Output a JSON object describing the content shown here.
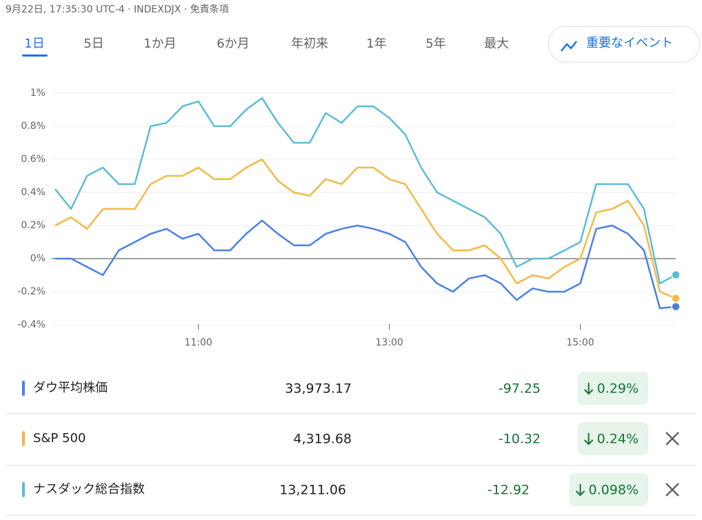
{
  "header": {
    "info": "9月22日, 17:35:30 UTC-4 · INDEXDJX · 免責条項",
    "tabs": [
      "1日",
      "5日",
      "1か月",
      "6か月",
      "年初来",
      "1年",
      "5年",
      "最大"
    ],
    "button": "重要なイベント"
  },
  "chart_data": {
    "type": "line",
    "x": [
      "9:30",
      "9:40",
      "9:50",
      "10:00",
      "10:10",
      "10:20",
      "10:30",
      "10:40",
      "10:50",
      "11:00",
      "11:10",
      "11:20",
      "11:30",
      "11:40",
      "11:50",
      "12:00",
      "12:10",
      "12:20",
      "12:30",
      "12:40",
      "12:50",
      "13:00",
      "13:10",
      "13:20",
      "13:30",
      "13:40",
      "13:50",
      "14:00",
      "14:10",
      "14:20",
      "14:30",
      "14:40",
      "14:50",
      "15:00",
      "15:10",
      "15:20",
      "15:30",
      "15:40",
      "15:50",
      "16:00"
    ],
    "xlim": [
      "9:30",
      "16:00"
    ],
    "xticks": [
      "11:00",
      "13:00",
      "15:00"
    ],
    "ylim": [
      -0.4,
      1
    ],
    "yticks": [
      {
        "value": -0.4,
        "label": "-0.4%"
      },
      {
        "value": -0.2,
        "label": "-0.2%"
      },
      {
        "value": 0,
        "label": "0%"
      },
      {
        "value": 0.2,
        "label": "0.2%"
      },
      {
        "value": 0.4,
        "label": "0.4%"
      },
      {
        "value": 0.6,
        "label": "0.6%"
      },
      {
        "value": 0.8,
        "label": "0.8%"
      },
      {
        "value": 1,
        "label": "1%"
      }
    ],
    "grid": true,
    "series": [
      {
        "name": "ダウ平均株価",
        "color": "#4a80e8",
        "values": [
          0.0,
          0.0,
          -0.05,
          -0.1,
          0.05,
          0.1,
          0.15,
          0.18,
          0.12,
          0.15,
          0.05,
          0.05,
          0.15,
          0.23,
          0.15,
          0.08,
          0.08,
          0.15,
          0.18,
          0.2,
          0.18,
          0.15,
          0.1,
          -0.05,
          -0.15,
          -0.2,
          -0.12,
          -0.1,
          -0.15,
          -0.25,
          -0.18,
          -0.2,
          -0.2,
          -0.15,
          0.18,
          0.2,
          0.15,
          0.05,
          -0.3,
          -0.29
        ]
      },
      {
        "name": "S&P 500",
        "color": "#f4b942",
        "values": [
          0.2,
          0.25,
          0.18,
          0.3,
          0.3,
          0.3,
          0.45,
          0.5,
          0.5,
          0.55,
          0.48,
          0.48,
          0.55,
          0.6,
          0.47,
          0.4,
          0.38,
          0.48,
          0.45,
          0.55,
          0.55,
          0.48,
          0.45,
          0.3,
          0.15,
          0.05,
          0.05,
          0.08,
          0.0,
          -0.15,
          -0.1,
          -0.12,
          -0.05,
          0.0,
          0.28,
          0.3,
          0.35,
          0.2,
          -0.2,
          -0.24
        ]
      },
      {
        "name": "ナスダック総合指数",
        "color": "#5bbcd6",
        "values": [
          0.42,
          0.3,
          0.5,
          0.55,
          0.45,
          0.45,
          0.8,
          0.82,
          0.92,
          0.95,
          0.8,
          0.8,
          0.9,
          0.97,
          0.82,
          0.7,
          0.7,
          0.88,
          0.82,
          0.92,
          0.92,
          0.85,
          0.75,
          0.55,
          0.4,
          0.35,
          0.3,
          0.25,
          0.15,
          -0.05,
          0.0,
          0.0,
          0.05,
          0.1,
          0.45,
          0.45,
          0.45,
          0.3,
          -0.15,
          -0.098
        ]
      }
    ]
  },
  "table": {
    "rows": [
      {
        "name": "ダウ平均株価",
        "price": "33,973.17",
        "change": "-97.25",
        "percent": "0.29%"
      },
      {
        "name": "S&P 500",
        "price": "4,319.68",
        "change": "-10.32",
        "percent": "0.24%"
      },
      {
        "name": "ナスダック総合指数",
        "price": "13,211.06",
        "change": "-12.92",
        "percent": "0.098%"
      }
    ]
  }
}
